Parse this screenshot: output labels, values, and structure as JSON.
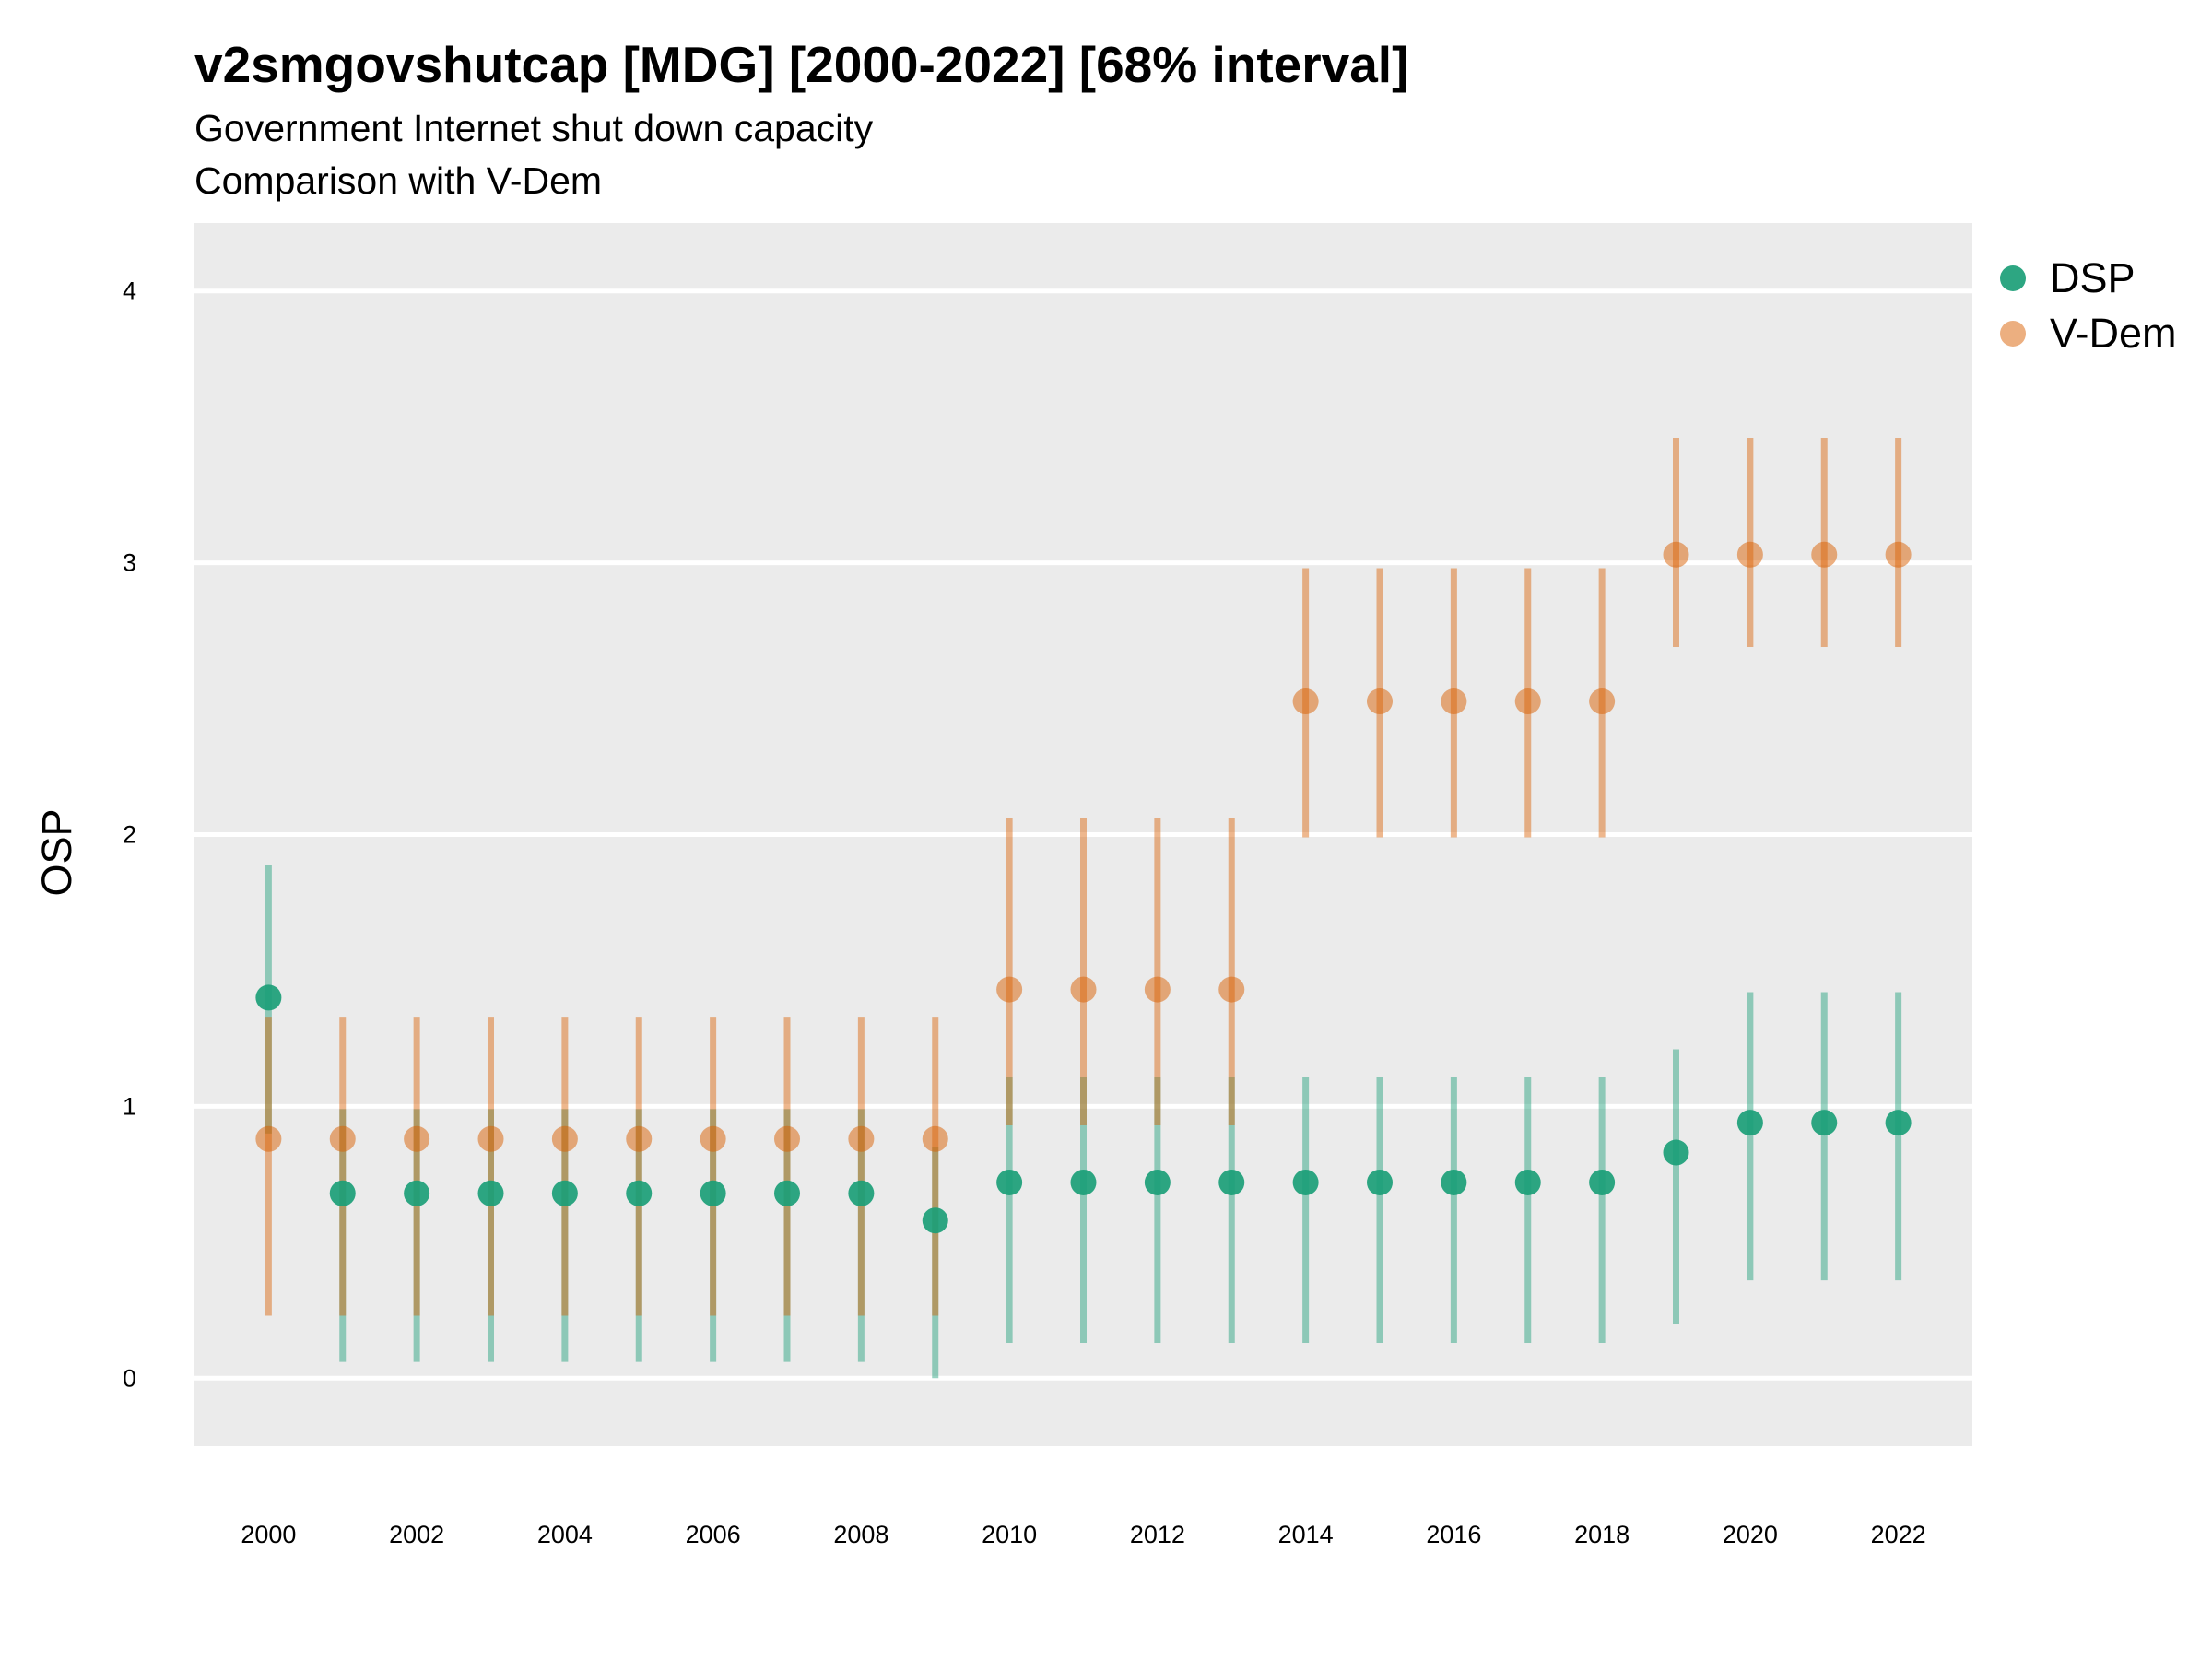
{
  "chart_data": {
    "type": "scatter",
    "title": "v2smgovshutcap [MDG] [2000-2022] [68% interval]",
    "subtitle": [
      "Government Internet shut down capacity",
      "Comparison with V-Dem"
    ],
    "xlabel": "",
    "ylabel": "OSP",
    "xlim": [
      1999,
      2023
    ],
    "ylim": [
      -0.25,
      4.25
    ],
    "x_ticks": [
      2000,
      2002,
      2004,
      2006,
      2008,
      2010,
      2012,
      2014,
      2016,
      2018,
      2020,
      2022
    ],
    "y_ticks": [
      0,
      1,
      2,
      3,
      4
    ],
    "grid": true,
    "legend_position": "right",
    "series": [
      {
        "name": "DSP",
        "color": "#1b9e77",
        "x": [
          2000,
          2001,
          2002,
          2003,
          2004,
          2005,
          2006,
          2007,
          2008,
          2009,
          2010,
          2011,
          2012,
          2013,
          2014,
          2015,
          2016,
          2017,
          2018,
          2019,
          2020,
          2021,
          2022
        ],
        "y": [
          1.4,
          0.68,
          0.68,
          0.68,
          0.68,
          0.68,
          0.68,
          0.68,
          0.68,
          0.58,
          0.72,
          0.72,
          0.72,
          0.72,
          0.72,
          0.72,
          0.72,
          0.72,
          0.72,
          0.83,
          0.94,
          0.94,
          0.94
        ],
        "lower": [
          0.9,
          0.06,
          0.06,
          0.06,
          0.06,
          0.06,
          0.06,
          0.06,
          0.06,
          0.0,
          0.13,
          0.13,
          0.13,
          0.13,
          0.13,
          0.13,
          0.13,
          0.13,
          0.13,
          0.2,
          0.36,
          0.36,
          0.36
        ],
        "upper": [
          1.89,
          0.99,
          0.99,
          0.99,
          0.99,
          0.99,
          0.99,
          0.99,
          0.99,
          0.85,
          1.11,
          1.11,
          1.11,
          1.11,
          1.11,
          1.11,
          1.11,
          1.11,
          1.11,
          1.21,
          1.42,
          1.42,
          1.42
        ]
      },
      {
        "name": "V-Dem",
        "color": "#d95f02",
        "x": [
          2000,
          2001,
          2002,
          2003,
          2004,
          2005,
          2006,
          2007,
          2008,
          2009,
          2010,
          2011,
          2012,
          2013,
          2014,
          2015,
          2016,
          2017,
          2018,
          2019,
          2020,
          2021,
          2022
        ],
        "y": [
          0.88,
          0.88,
          0.88,
          0.88,
          0.88,
          0.88,
          0.88,
          0.88,
          0.88,
          0.88,
          1.43,
          1.43,
          1.43,
          1.43,
          2.49,
          2.49,
          2.49,
          2.49,
          2.49,
          3.03,
          3.03,
          3.03,
          3.03
        ],
        "lower": [
          0.23,
          0.23,
          0.23,
          0.23,
          0.23,
          0.23,
          0.23,
          0.23,
          0.23,
          0.23,
          0.93,
          0.93,
          0.93,
          0.93,
          1.99,
          1.99,
          1.99,
          1.99,
          1.99,
          2.69,
          2.69,
          2.69,
          2.69
        ],
        "upper": [
          1.33,
          1.33,
          1.33,
          1.33,
          1.33,
          1.33,
          1.33,
          1.33,
          1.33,
          1.33,
          2.06,
          2.06,
          2.06,
          2.06,
          2.98,
          2.98,
          2.98,
          2.98,
          2.98,
          3.46,
          3.46,
          3.46,
          3.46
        ]
      }
    ]
  }
}
